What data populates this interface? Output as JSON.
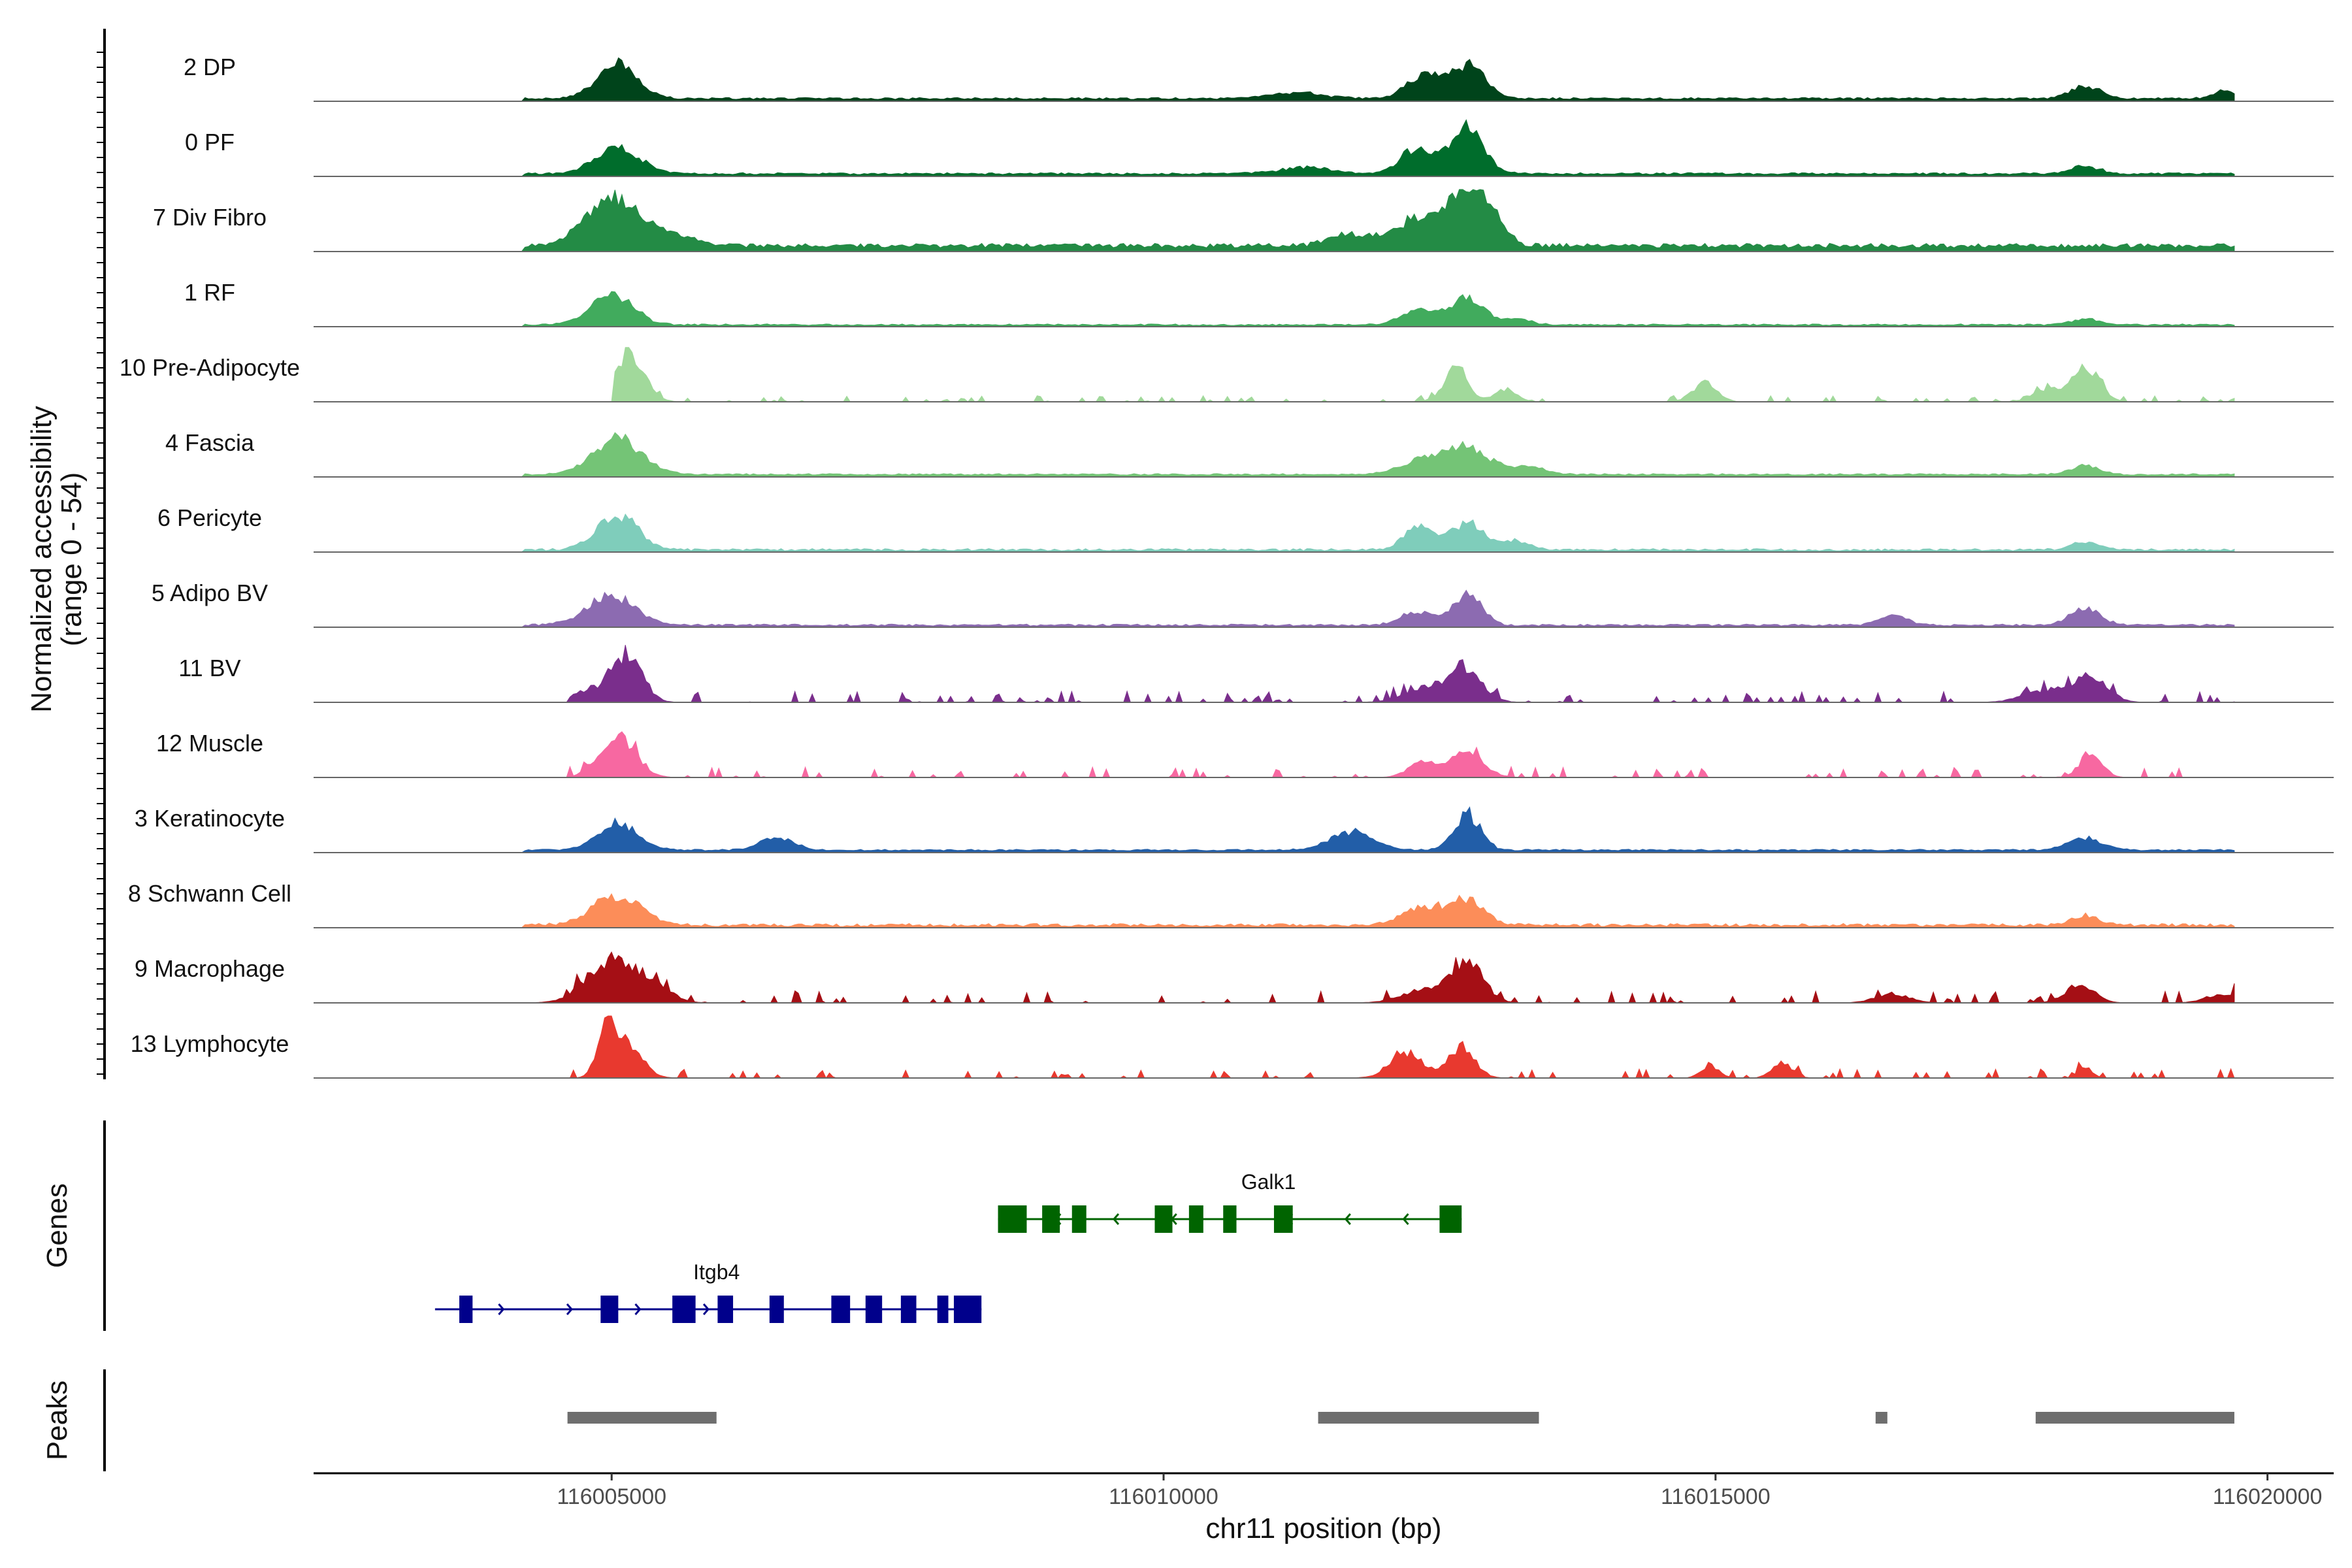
{
  "chart_data": {
    "type": "area",
    "title": "",
    "y_axis_title_line1": "Normalized accessibility",
    "y_axis_title_line2": "(range 0 - 54)",
    "y_range": [
      0,
      54
    ],
    "x_axis_title": "chr11 position (bp)",
    "x_range": [
      116002300,
      116020600
    ],
    "data_range": [
      116003400,
      116019700
    ],
    "x_ticks": [
      116005000,
      116010000,
      116015000,
      116020000
    ],
    "x_tick_labels": [
      "116005000",
      "116010000",
      "116015000",
      "116020000"
    ],
    "genes_label": "Genes",
    "peaks_label": "Peaks",
    "tracks": [
      {
        "name": "2 DP",
        "color": "#00441b",
        "baseline": 0.03,
        "noise": 0.05,
        "start": 116004200,
        "peaks": [
          [
            116005050,
            0.55,
            180
          ],
          [
            116012350,
            0.35,
            160
          ],
          [
            116012750,
            0.52,
            170
          ],
          [
            116018350,
            0.22,
            130
          ],
          [
            116019600,
            0.12,
            100
          ],
          [
            116011200,
            0.1,
            250
          ]
        ]
      },
      {
        "name": "0 PF",
        "color": "#006d2c",
        "baseline": 0.03,
        "noise": 0.05,
        "start": 116004200,
        "peaks": [
          [
            116005050,
            0.42,
            200
          ],
          [
            116012300,
            0.42,
            150
          ],
          [
            116012750,
            0.75,
            150
          ],
          [
            116018350,
            0.12,
            130
          ],
          [
            116011300,
            0.1,
            250
          ]
        ]
      },
      {
        "name": "7 Div Fibro",
        "color": "#238b45",
        "baseline": 0.06,
        "noise": 0.12,
        "start": 116004200,
        "peaks": [
          [
            116005000,
            0.72,
            250
          ],
          [
            116005500,
            0.18,
            250
          ],
          [
            116011700,
            0.2,
            180
          ],
          [
            116012300,
            0.45,
            200
          ],
          [
            116012750,
            0.95,
            160
          ],
          [
            116013000,
            0.3,
            120
          ]
        ]
      },
      {
        "name": "1 RF",
        "color": "#41ab5d",
        "baseline": 0.02,
        "noise": 0.04,
        "start": 116004200,
        "peaks": [
          [
            116005000,
            0.52,
            190
          ],
          [
            116012300,
            0.25,
            150
          ],
          [
            116012750,
            0.45,
            150
          ],
          [
            116013200,
            0.1,
            120
          ],
          [
            116018350,
            0.1,
            120
          ]
        ]
      },
      {
        "name": "10 Pre-Adipocyte",
        "color": "#a1d99b",
        "baseline": 0.0,
        "noise": 0.1,
        "start": 116005000,
        "peaks": [
          [
            116005150,
            0.78,
            140
          ],
          [
            116012650,
            0.55,
            110
          ],
          [
            116013100,
            0.2,
            100
          ],
          [
            116014900,
            0.3,
            110
          ],
          [
            116018000,
            0.18,
            130
          ],
          [
            116018350,
            0.55,
            130
          ]
        ]
      },
      {
        "name": "4 Fascia",
        "color": "#74c476",
        "baseline": 0.03,
        "noise": 0.04,
        "start": 116004200,
        "peaks": [
          [
            116005050,
            0.58,
            220
          ],
          [
            116012350,
            0.22,
            200
          ],
          [
            116012750,
            0.42,
            200
          ],
          [
            116013300,
            0.12,
            150
          ],
          [
            116018350,
            0.15,
            120
          ]
        ]
      },
      {
        "name": "6 Pericyte",
        "color": "#7fcdbb",
        "baseline": 0.02,
        "noise": 0.06,
        "start": 116004200,
        "peaks": [
          [
            116005050,
            0.6,
            180
          ],
          [
            116012300,
            0.38,
            120
          ],
          [
            116012750,
            0.45,
            160
          ],
          [
            116013200,
            0.15,
            120
          ],
          [
            116018350,
            0.12,
            130
          ]
        ]
      },
      {
        "name": "5 Adipo BV",
        "color": "#8c6bb1",
        "baseline": 0.02,
        "noise": 0.05,
        "start": 116004200,
        "peaks": [
          [
            116005000,
            0.48,
            220
          ],
          [
            116012300,
            0.22,
            150
          ],
          [
            116012750,
            0.5,
            130
          ],
          [
            116016600,
            0.18,
            120
          ],
          [
            116018350,
            0.3,
            130
          ]
        ]
      },
      {
        "name": "11 BV",
        "color": "#7a2e8c",
        "baseline": 0.0,
        "noise": 0.18,
        "start": 116004600,
        "peaks": [
          [
            116005150,
            0.82,
            130
          ],
          [
            116004800,
            0.2,
            150
          ],
          [
            116012400,
            0.25,
            200
          ],
          [
            116012750,
            0.45,
            150
          ],
          [
            116018000,
            0.2,
            200
          ],
          [
            116018400,
            0.4,
            150
          ]
        ]
      },
      {
        "name": "12 Muscle",
        "color": "#f768a1",
        "baseline": 0.0,
        "noise": 0.18,
        "start": 116004600,
        "peaks": [
          [
            116005050,
            0.65,
            160
          ],
          [
            116012350,
            0.25,
            130
          ],
          [
            116012750,
            0.4,
            150
          ],
          [
            116018400,
            0.4,
            100
          ]
        ]
      },
      {
        "name": "3 Keratinocyte",
        "color": "#225ea8",
        "baseline": 0.03,
        "noise": 0.04,
        "start": 116004200,
        "peaks": [
          [
            116005050,
            0.45,
            180
          ],
          [
            116006500,
            0.2,
            150
          ],
          [
            116011700,
            0.3,
            200
          ],
          [
            116012750,
            0.6,
            120
          ],
          [
            116018350,
            0.2,
            150
          ]
        ]
      },
      {
        "name": "8 Schwann Cell",
        "color": "#fc8d59",
        "baseline": 0.02,
        "noise": 0.08,
        "start": 116004200,
        "peaks": [
          [
            116005050,
            0.5,
            220
          ],
          [
            116012350,
            0.3,
            180
          ],
          [
            116012750,
            0.4,
            150
          ],
          [
            116018350,
            0.15,
            120
          ]
        ]
      },
      {
        "name": "9 Macrophage",
        "color": "#a50f15",
        "baseline": 0.0,
        "noise": 0.2,
        "start": 116004200,
        "peaks": [
          [
            116005000,
            0.72,
            220
          ],
          [
            116005400,
            0.22,
            150
          ],
          [
            116012350,
            0.2,
            200
          ],
          [
            116012750,
            0.62,
            150
          ],
          [
            116016600,
            0.15,
            150
          ],
          [
            116018300,
            0.3,
            130
          ],
          [
            116019600,
            0.15,
            150
          ]
        ]
      },
      {
        "name": "13 Lymphocyte",
        "color": "#e8392f",
        "baseline": 0.0,
        "noise": 0.15,
        "start": 116004600,
        "peaks": [
          [
            116004950,
            0.85,
            80
          ],
          [
            116005150,
            0.55,
            130
          ],
          [
            116012200,
            0.4,
            150
          ],
          [
            116012700,
            0.48,
            120
          ],
          [
            116014950,
            0.2,
            80
          ],
          [
            116015600,
            0.25,
            90
          ],
          [
            116018350,
            0.2,
            60
          ]
        ]
      }
    ],
    "genes": [
      {
        "name": "Galk1",
        "strand": "-",
        "color": "#006400",
        "start": 116008500,
        "end": 116012700,
        "exons": [
          [
            116008500,
            116008760
          ],
          [
            116008900,
            116009060
          ],
          [
            116009170,
            116009300
          ],
          [
            116009920,
            116010080
          ],
          [
            116010230,
            116010360
          ],
          [
            116010540,
            116010660
          ],
          [
            116011000,
            116011170
          ],
          [
            116012500,
            116012700
          ]
        ]
      },
      {
        "name": "Itgb4",
        "strand": "+",
        "color": "#00008b",
        "start": 116003400,
        "end": 116008350,
        "exons": [
          [
            116003620,
            116003740
          ],
          [
            116004900,
            116005060
          ],
          [
            116005550,
            116005760
          ],
          [
            116005960,
            116006100
          ],
          [
            116006430,
            116006560
          ],
          [
            116006990,
            116007160
          ],
          [
            116007300,
            116007450
          ],
          [
            116007620,
            116007760
          ],
          [
            116007950,
            116008050
          ],
          [
            116008100,
            116008350
          ]
        ]
      }
    ],
    "peaks": [
      [
        116004600,
        116005950
      ],
      [
        116011400,
        116013400
      ],
      [
        116016450,
        116016550
      ],
      [
        116017900,
        116019700
      ]
    ]
  }
}
